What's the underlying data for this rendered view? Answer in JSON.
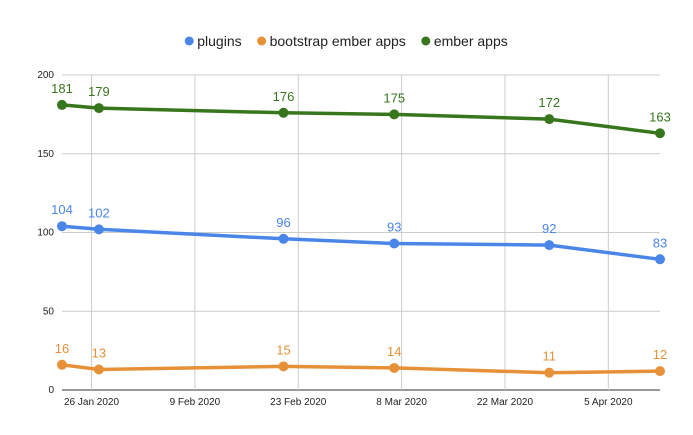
{
  "chart_data": {
    "type": "line",
    "title": "",
    "xlabel": "",
    "ylabel": "",
    "ylim": [
      0,
      200
    ],
    "yticks": [
      0,
      50,
      100,
      150,
      200
    ],
    "xlim": [
      "2020-01-22",
      "2020-04-12"
    ],
    "xticks": [
      {
        "date": "2020-01-26",
        "label": "26 Jan 2020"
      },
      {
        "date": "2020-02-09",
        "label": "9 Feb 2020"
      },
      {
        "date": "2020-02-23",
        "label": "23 Feb 2020"
      },
      {
        "date": "2020-03-08",
        "label": "8 Mar 2020"
      },
      {
        "date": "2020-03-22",
        "label": "22 Mar 2020"
      },
      {
        "date": "2020-04-05",
        "label": "5 Apr 2020"
      }
    ],
    "x": [
      "2020-01-22",
      "2020-01-27",
      "2020-02-21",
      "2020-03-07",
      "2020-03-28",
      "2020-04-12"
    ],
    "series": [
      {
        "name": "plugins",
        "color": "#4a86e8",
        "values": [
          104,
          102,
          96,
          93,
          92,
          83
        ]
      },
      {
        "name": "bootstrap ember apps",
        "color": "#e69138",
        "values": [
          16,
          13,
          15,
          14,
          11,
          12
        ]
      },
      {
        "name": "ember apps",
        "color": "#38761d",
        "values": [
          181,
          179,
          176,
          175,
          172,
          163
        ]
      }
    ],
    "legend_position": "top-center",
    "grid": true
  }
}
